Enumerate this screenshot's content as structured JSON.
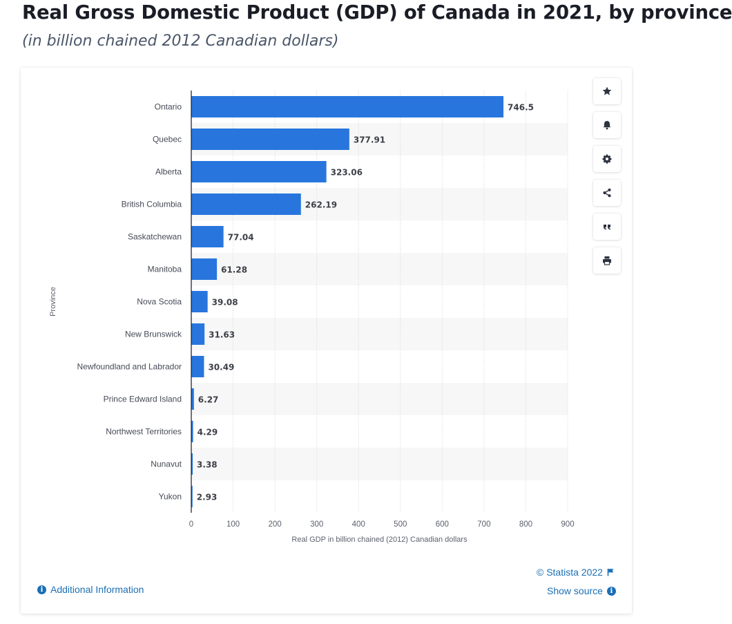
{
  "header": {
    "title": "Real Gross Domestic Product (GDP) of Canada in 2021, by province",
    "subtitle": "(in billion chained 2012 Canadian dollars)"
  },
  "chart_data": {
    "type": "bar",
    "orientation": "horizontal",
    "categories": [
      "Ontario",
      "Quebec",
      "Alberta",
      "British Columbia",
      "Saskatchewan",
      "Manitoba",
      "Nova Scotia",
      "New Brunswick",
      "Newfoundland and Labrador",
      "Prince Edward Island",
      "Northwest Territories",
      "Nunavut",
      "Yukon"
    ],
    "values": [
      746.5,
      377.91,
      323.06,
      262.19,
      77.04,
      61.28,
      39.08,
      31.63,
      30.49,
      6.27,
      4.29,
      3.38,
      2.93
    ],
    "value_labels": [
      "746.5",
      "377.91",
      "323.06",
      "262.19",
      "77.04",
      "61.28",
      "39.08",
      "31.63",
      "30.49",
      "6.27",
      "4.29",
      "3.38",
      "2.93"
    ],
    "xlabel": "Real GDP in billion chained (2012) Canadian dollars",
    "ylabel": "Province",
    "xlim": [
      0,
      900
    ],
    "xticks": [
      0,
      100,
      200,
      300,
      400,
      500,
      600,
      700,
      800,
      900
    ],
    "grid": true,
    "bar_color": "#2876dd",
    "band_color": "#f7f7f7"
  },
  "toolbar": {
    "icons": [
      "star-icon",
      "bell-icon",
      "gear-icon",
      "share-icon",
      "quote-icon",
      "print-icon"
    ]
  },
  "footer": {
    "copyright": "© Statista 2022",
    "show_source": "Show source",
    "additional_info": "Additional Information"
  },
  "colors": {
    "accent": "#1a6fb5",
    "title": "#1a1d26",
    "subtitle": "#4a5668"
  }
}
